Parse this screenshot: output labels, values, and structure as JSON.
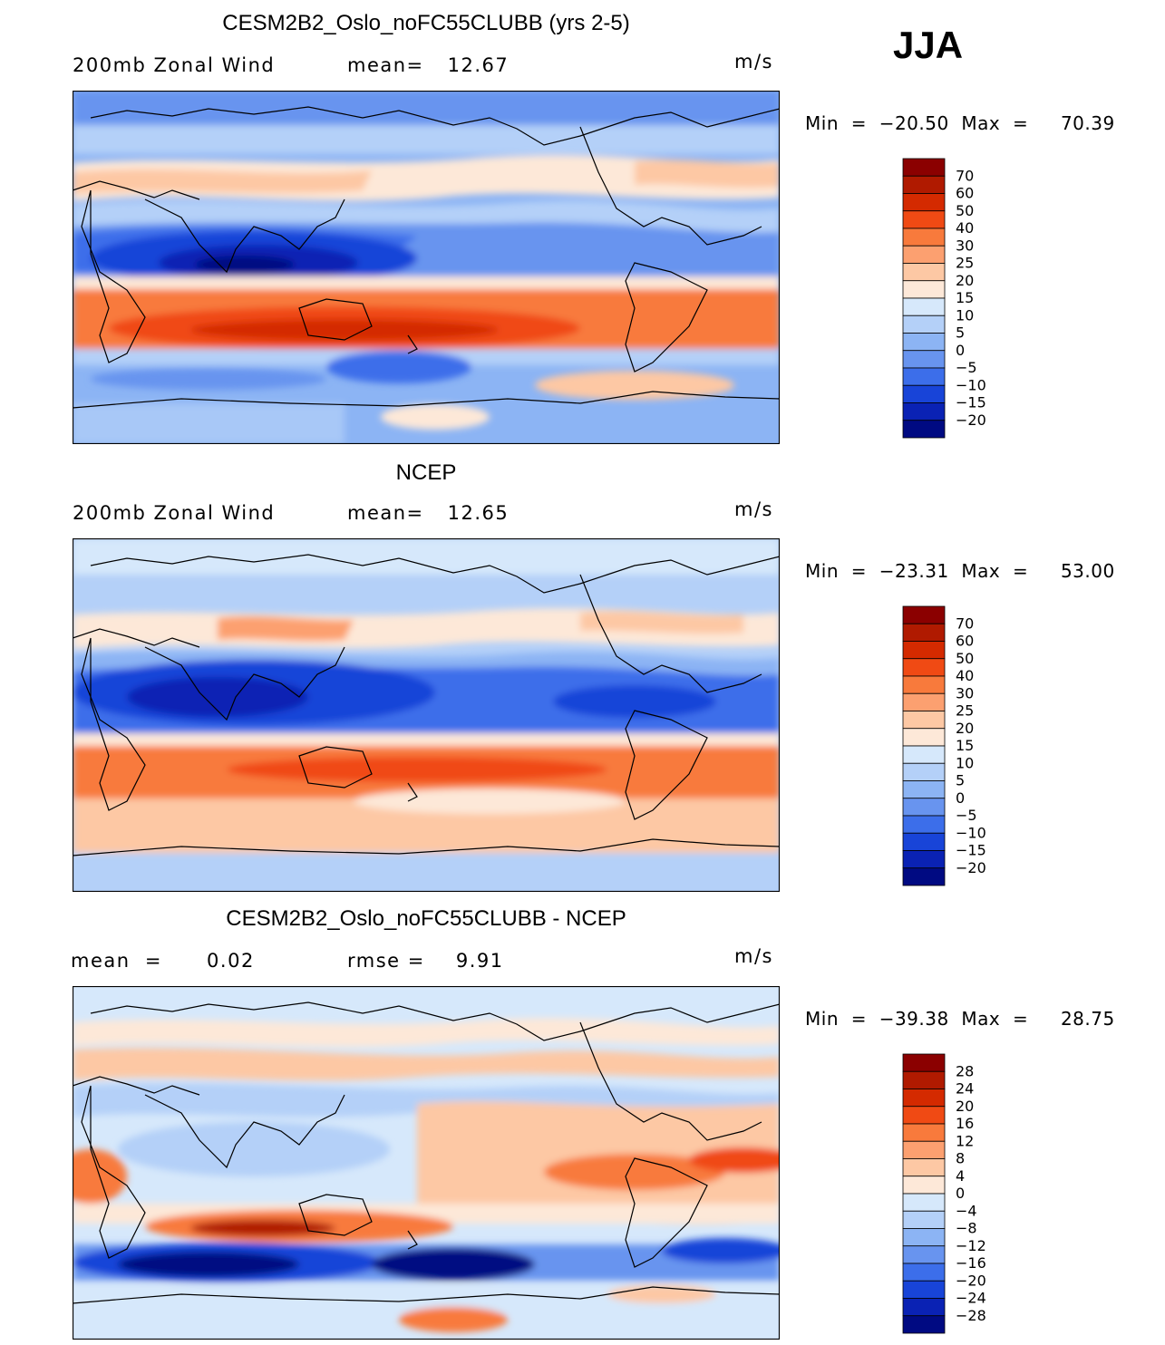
{
  "season": "JJA",
  "units": "m/s",
  "chart_data": [
    {
      "type": "heatmap",
      "title": "CESM2B2_Oslo_noFC55CLUBB (yrs 2-5)",
      "subtitle_left": "200mb  Zonal  Wind",
      "stat_label": "mean=",
      "stat_value": "12.67",
      "units": "m/s",
      "min_label": "Min  =  ",
      "min_value": "−20.50",
      "max_label": "  Max  =  ",
      "max_value": "70.39",
      "levels": [
        "70",
        "60",
        "50",
        "40",
        "30",
        "25",
        "20",
        "15",
        "10",
        "5",
        "0",
        "−5",
        "−10",
        "−15",
        "−20"
      ],
      "colors": [
        "#8b0000",
        "#b01a00",
        "#d42a00",
        "#f04a14",
        "#f87a3c",
        "#fca070",
        "#fdc8a4",
        "#fde8d8",
        "#d6e8fb",
        "#b4d0f8",
        "#8cb4f4",
        "#6894ef",
        "#3c6eea",
        "#1844d8",
        "#0a22b4",
        "#000a82"
      ]
    },
    {
      "type": "heatmap",
      "title": "NCEP",
      "subtitle_left": "200mb  Zonal  Wind",
      "stat_label": "mean=",
      "stat_value": "12.65",
      "units": "m/s",
      "min_label": "Min  =  ",
      "min_value": "−23.31",
      "max_label": "  Max  =  ",
      "max_value": "53.00",
      "levels": [
        "70",
        "60",
        "50",
        "40",
        "30",
        "25",
        "20",
        "15",
        "10",
        "5",
        "0",
        "−5",
        "−10",
        "−15",
        "−20"
      ],
      "colors": [
        "#8b0000",
        "#b01a00",
        "#d42a00",
        "#f04a14",
        "#f87a3c",
        "#fca070",
        "#fdc8a4",
        "#fde8d8",
        "#d6e8fb",
        "#b4d0f8",
        "#8cb4f4",
        "#6894ef",
        "#3c6eea",
        "#1844d8",
        "#0a22b4",
        "#000a82"
      ]
    },
    {
      "type": "heatmap",
      "title": "CESM2B2_Oslo_noFC55CLUBB - NCEP",
      "subtitle_left": "mean  =      0.02",
      "stat_label": "rmse  =",
      "stat_value": "9.91",
      "units": "m/s",
      "min_label": "Min  =  ",
      "min_value": "−39.38",
      "max_label": "  Max  =  ",
      "max_value": "28.75",
      "levels": [
        "28",
        "24",
        "20",
        "16",
        "12",
        "8",
        "4",
        "0",
        "−4",
        "−8",
        "−12",
        "−16",
        "−20",
        "−24",
        "−28"
      ],
      "colors": [
        "#8b0000",
        "#b01a00",
        "#d42a00",
        "#f04a14",
        "#f87a3c",
        "#fca070",
        "#fdc8a4",
        "#fde8d8",
        "#d6e8fb",
        "#b4d0f8",
        "#8cb4f4",
        "#6894ef",
        "#3c6eea",
        "#1844d8",
        "#0a22b4",
        "#000a82"
      ]
    }
  ]
}
